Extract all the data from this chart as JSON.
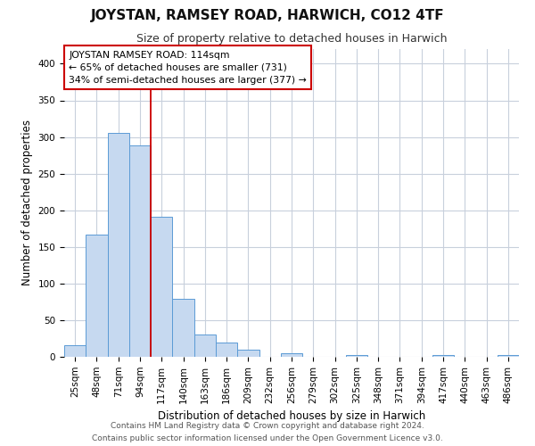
{
  "title": "JOYSTAN, RAMSEY ROAD, HARWICH, CO12 4TF",
  "subtitle": "Size of property relative to detached houses in Harwich",
  "xlabel": "Distribution of detached houses by size in Harwich",
  "ylabel": "Number of detached properties",
  "bar_labels": [
    "25sqm",
    "48sqm",
    "71sqm",
    "94sqm",
    "117sqm",
    "140sqm",
    "163sqm",
    "186sqm",
    "209sqm",
    "232sqm",
    "256sqm",
    "279sqm",
    "302sqm",
    "325sqm",
    "348sqm",
    "371sqm",
    "394sqm",
    "417sqm",
    "440sqm",
    "463sqm",
    "486sqm"
  ],
  "bar_values": [
    16,
    167,
    305,
    288,
    191,
    79,
    31,
    19,
    10,
    0,
    5,
    0,
    0,
    2,
    0,
    0,
    0,
    2,
    0,
    0,
    2
  ],
  "bar_color": "#c6d9f0",
  "bar_edge_color": "#5b9bd5",
  "vline_index": 4,
  "vline_color": "#cc0000",
  "annotation_line1": "JOYSTAN RAMSEY ROAD: 114sqm",
  "annotation_line2": "← 65% of detached houses are smaller (731)",
  "annotation_line3": "34% of semi-detached houses are larger (377) →",
  "annotation_box_color": "white",
  "annotation_box_edge": "#cc0000",
  "ylim": [
    0,
    420
  ],
  "yticks": [
    0,
    50,
    100,
    150,
    200,
    250,
    300,
    350,
    400
  ],
  "footer1": "Contains HM Land Registry data © Crown copyright and database right 2024.",
  "footer2": "Contains public sector information licensed under the Open Government Licence v3.0.",
  "background_color": "#ffffff",
  "grid_color": "#c8d0dc",
  "title_fontsize": 11,
  "subtitle_fontsize": 9,
  "axis_label_fontsize": 8.5,
  "tick_fontsize": 7.5,
  "footer_fontsize": 6.5
}
